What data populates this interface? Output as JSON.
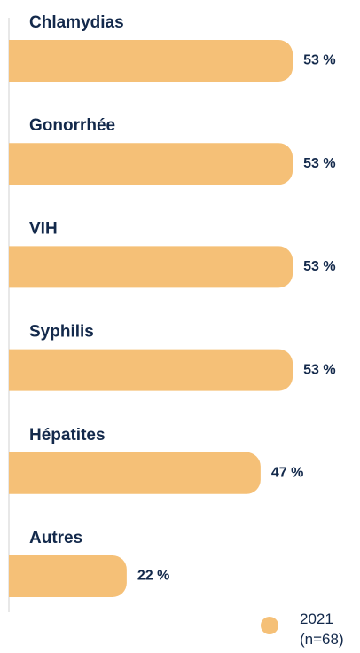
{
  "chart_data": {
    "type": "bar",
    "orientation": "horizontal",
    "categories": [
      "Chlamydias",
      "Gonorrhée",
      "VIH",
      "Syphilis",
      "Hépatites",
      "Autres"
    ],
    "series": [
      {
        "name": "2021 (n=68)",
        "color": "#f5c077",
        "values": [
          53,
          53,
          53,
          53,
          47,
          22
        ],
        "value_labels": [
          "53 %",
          "53 %",
          "53 %",
          "53 %",
          "47 %",
          "22 %"
        ]
      }
    ]
  }
}
